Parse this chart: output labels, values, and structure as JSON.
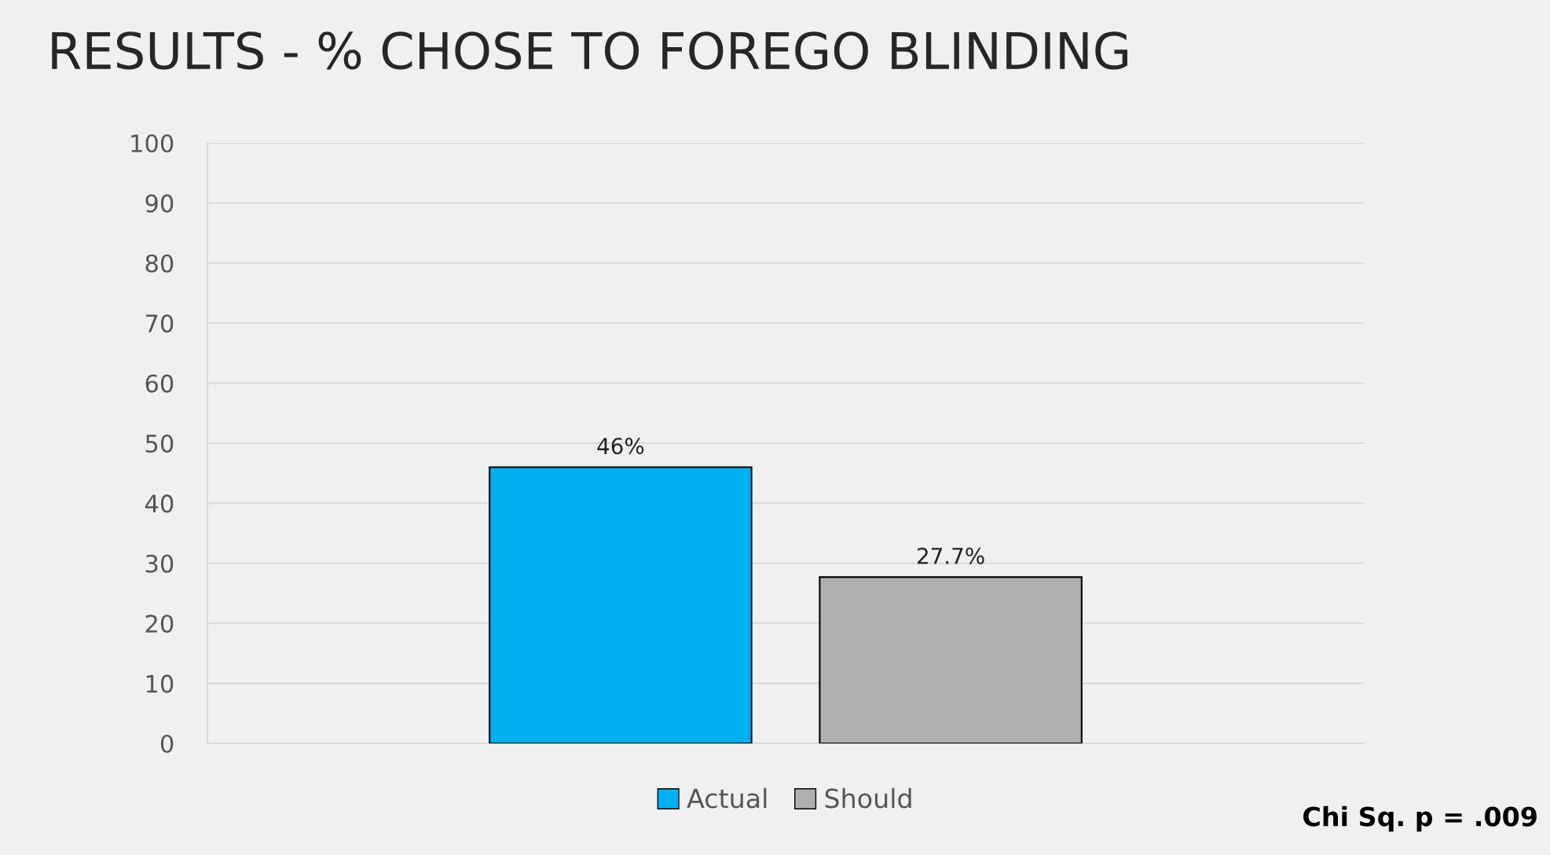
{
  "chart_data": {
    "type": "bar",
    "title": "RESULTS - % CHOSE TO FOREGO BLINDING",
    "categories": [
      null
    ],
    "series": [
      {
        "name": "Actual",
        "color": "#00b0f0",
        "values": [
          46
        ],
        "value_labels": [
          "46%"
        ]
      },
      {
        "name": "Should",
        "color": "#b0b0b0",
        "values": [
          27.7
        ],
        "value_labels": [
          "27.7%"
        ]
      }
    ],
    "ylim": [
      0,
      100
    ],
    "yticks": [
      0,
      10,
      20,
      30,
      40,
      50,
      60,
      70,
      80,
      90,
      100
    ],
    "grid": "y",
    "legend": "bottom",
    "annotations": [
      "Chi Sq. p = .009"
    ]
  }
}
